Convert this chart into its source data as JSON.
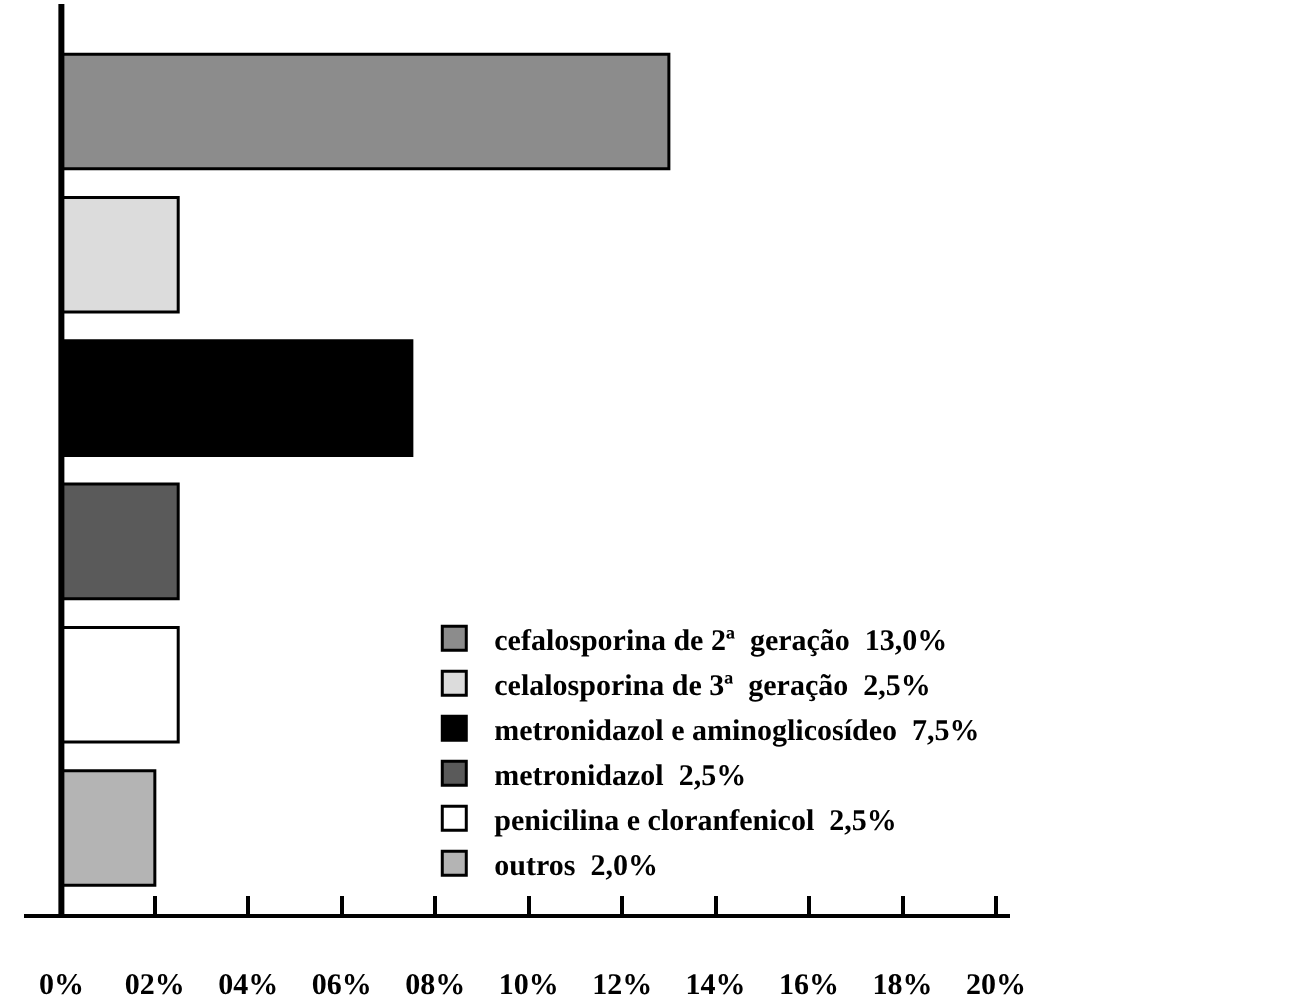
{
  "chart_data": {
    "type": "bar",
    "orientation": "horizontal",
    "categories": [
      null,
      null,
      null,
      null,
      null,
      null
    ],
    "series": [
      {
        "name": "cefalosporina de 2ª  geração  13,0%",
        "color": "#8c8c8c",
        "values": [
          13.0,
          null,
          null,
          null,
          null,
          null
        ]
      },
      {
        "name": "celalosporina de 3ª  geração  2,5%",
        "color": "#dcdcdc",
        "values": [
          null,
          2.5,
          null,
          null,
          null,
          null
        ]
      },
      {
        "name": "metronidazol e aminoglicosídeo  7,5%",
        "color": "#000000",
        "values": [
          null,
          null,
          7.5,
          null,
          null,
          null
        ]
      },
      {
        "name": "metronidazol  2,5%",
        "color": "#5a5a5a",
        "values": [
          null,
          null,
          null,
          2.5,
          null,
          null
        ]
      },
      {
        "name": "penicilina e cloranfenicol  2,5%",
        "color": "#ffffff",
        "values": [
          null,
          null,
          null,
          null,
          2.5,
          null
        ]
      },
      {
        "name": "outros  2,0%",
        "color": "#b4b4b4",
        "values": [
          null,
          null,
          null,
          null,
          null,
          2.0
        ]
      }
    ],
    "xlim": [
      -0.8,
      20.3
    ],
    "xticks": [
      {
        "value": 0,
        "label": "0%"
      },
      {
        "value": 2,
        "label": "02%"
      },
      {
        "value": 4,
        "label": "04%"
      },
      {
        "value": 6,
        "label": "06%"
      },
      {
        "value": 8,
        "label": "08%"
      },
      {
        "value": 10,
        "label": "10%"
      },
      {
        "value": 12,
        "label": "12%"
      },
      {
        "value": 14,
        "label": "14%"
      },
      {
        "value": 16,
        "label": "16%"
      },
      {
        "value": 18,
        "label": "18%"
      },
      {
        "value": 20,
        "label": "20%"
      }
    ],
    "legend": "bottom right",
    "tick_labels": "x"
  }
}
